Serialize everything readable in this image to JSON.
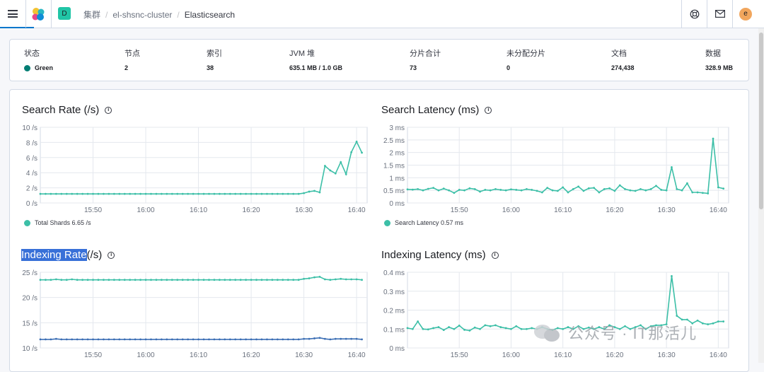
{
  "header": {
    "space_initial": "D",
    "breadcrumbs": [
      "集群",
      "el-shsnc-cluster",
      "Elasticsearch"
    ],
    "avatar_initial": "e",
    "accent_color": "#0077cc"
  },
  "summary": {
    "items": [
      {
        "label": "状态",
        "value": "Green",
        "color": "#017d73"
      },
      {
        "label": "节点",
        "value": "2"
      },
      {
        "label": "索引",
        "value": "38"
      },
      {
        "label": "JVM 堆",
        "value": "635.1 MB / 1.0 GB"
      },
      {
        "label": "分片合计",
        "value": "73"
      },
      {
        "label": "未分配分片",
        "value": "0"
      },
      {
        "label": "文档",
        "value": "274,438"
      },
      {
        "label": "数据",
        "value": "328.9 MB"
      }
    ]
  },
  "charts": {
    "search_rate": {
      "title": "Search Rate (/s)",
      "legend": "Total Shards 6.65 /s"
    },
    "search_latency": {
      "title": "Search Latency (ms)",
      "legend": "Search Latency 0.57 ms"
    },
    "indexing_rate": {
      "title_highlight": "Indexing Rate",
      "title_rest": " (/s)"
    },
    "indexing_latency": {
      "title": "Indexing Latency (ms)"
    }
  },
  "watermark": {
    "text": "公众号 · IT那活儿"
  },
  "chart_data": [
    {
      "type": "line",
      "title": "Search Rate (/s)",
      "ylim": [
        0,
        10
      ],
      "yticks": [
        "0 /s",
        "2 /s",
        "4 /s",
        "6 /s",
        "8 /s",
        "10 /s"
      ],
      "ytick_values": [
        0,
        2,
        4,
        6,
        8,
        10
      ],
      "xticks": [
        "15:50",
        "16:00",
        "16:10",
        "16:20",
        "16:30",
        "16:40"
      ],
      "xtick_minutes": [
        10,
        20,
        30,
        40,
        50,
        60
      ],
      "x_range_minutes": [
        0,
        62
      ],
      "color": "#3cbfa7",
      "series": [
        {
          "name": "Total Shards",
          "x": [
            0,
            1,
            2,
            3,
            4,
            5,
            6,
            7,
            8,
            9,
            10,
            11,
            12,
            13,
            14,
            15,
            16,
            17,
            18,
            19,
            20,
            21,
            22,
            23,
            24,
            25,
            26,
            27,
            28,
            29,
            30,
            31,
            32,
            33,
            34,
            35,
            36,
            37,
            38,
            39,
            40,
            41,
            42,
            43,
            44,
            45,
            46,
            47,
            48,
            49,
            50,
            51,
            52,
            53,
            54,
            55,
            56,
            57,
            58,
            59,
            60,
            61
          ],
          "values": [
            1.2,
            1.2,
            1.2,
            1.2,
            1.2,
            1.2,
            1.2,
            1.2,
            1.2,
            1.2,
            1.2,
            1.2,
            1.2,
            1.2,
            1.2,
            1.2,
            1.2,
            1.2,
            1.2,
            1.2,
            1.2,
            1.2,
            1.2,
            1.2,
            1.2,
            1.2,
            1.2,
            1.2,
            1.2,
            1.2,
            1.2,
            1.2,
            1.2,
            1.2,
            1.2,
            1.2,
            1.2,
            1.2,
            1.2,
            1.2,
            1.2,
            1.2,
            1.2,
            1.2,
            1.2,
            1.2,
            1.2,
            1.2,
            1.2,
            1.2,
            1.3,
            1.5,
            1.6,
            1.4,
            4.9,
            4.3,
            3.9,
            5.4,
            3.8,
            6.7,
            8.1,
            6.65
          ]
        }
      ]
    },
    {
      "type": "line",
      "title": "Search Latency (ms)",
      "ylim": [
        0,
        3
      ],
      "yticks": [
        "0 ms",
        "0.5 ms",
        "1 ms",
        "1.5 ms",
        "2 ms",
        "2.5 ms",
        "3 ms"
      ],
      "ytick_values": [
        0,
        0.5,
        1,
        1.5,
        2,
        2.5,
        3
      ],
      "xticks": [
        "15:50",
        "16:00",
        "16:10",
        "16:20",
        "16:30",
        "16:40"
      ],
      "xtick_minutes": [
        10,
        20,
        30,
        40,
        50,
        60
      ],
      "x_range_minutes": [
        0,
        62
      ],
      "color": "#3cbfa7",
      "series": [
        {
          "name": "Search Latency",
          "x": [
            0,
            1,
            2,
            3,
            4,
            5,
            6,
            7,
            8,
            9,
            10,
            11,
            12,
            13,
            14,
            15,
            16,
            17,
            18,
            19,
            20,
            21,
            22,
            23,
            24,
            25,
            26,
            27,
            28,
            29,
            30,
            31,
            32,
            33,
            34,
            35,
            36,
            37,
            38,
            39,
            40,
            41,
            42,
            43,
            44,
            45,
            46,
            47,
            48,
            49,
            50,
            51,
            52,
            53,
            54,
            55,
            56,
            57,
            58,
            59,
            60,
            61
          ],
          "values": [
            0.54,
            0.53,
            0.55,
            0.5,
            0.56,
            0.6,
            0.5,
            0.57,
            0.5,
            0.4,
            0.52,
            0.5,
            0.58,
            0.55,
            0.45,
            0.52,
            0.5,
            0.55,
            0.52,
            0.5,
            0.54,
            0.52,
            0.5,
            0.55,
            0.52,
            0.48,
            0.42,
            0.6,
            0.5,
            0.48,
            0.62,
            0.42,
            0.55,
            0.65,
            0.48,
            0.58,
            0.6,
            0.42,
            0.55,
            0.58,
            0.48,
            0.7,
            0.55,
            0.5,
            0.48,
            0.55,
            0.5,
            0.55,
            0.68,
            0.52,
            0.5,
            1.42,
            0.55,
            0.5,
            0.78,
            0.42,
            0.42,
            0.4,
            0.38,
            2.55,
            0.62,
            0.57
          ]
        }
      ]
    },
    {
      "type": "line",
      "title": "Indexing Rate (/s)",
      "ylim": [
        10,
        25
      ],
      "yticks": [
        "10 /s",
        "15 /s",
        "20 /s",
        "25 /s"
      ],
      "ytick_values": [
        10,
        15,
        20,
        25
      ],
      "xticks": [
        "15:50",
        "16:00",
        "16:10",
        "16:20",
        "16:30",
        "16:40"
      ],
      "xtick_minutes": [
        10,
        20,
        30,
        40,
        50,
        60
      ],
      "x_range_minutes": [
        0,
        62
      ],
      "colors": [
        "#3cbfa7",
        "#3c6fb5"
      ],
      "series": [
        {
          "x": [
            0,
            1,
            2,
            3,
            4,
            5,
            6,
            7,
            8,
            9,
            10,
            11,
            12,
            13,
            14,
            15,
            16,
            17,
            18,
            19,
            20,
            21,
            22,
            23,
            24,
            25,
            26,
            27,
            28,
            29,
            30,
            31,
            32,
            33,
            34,
            35,
            36,
            37,
            38,
            39,
            40,
            41,
            42,
            43,
            44,
            45,
            46,
            47,
            48,
            49,
            50,
            51,
            52,
            53,
            54,
            55,
            56,
            57,
            58,
            59,
            60,
            61
          ],
          "values": [
            23.5,
            23.5,
            23.5,
            23.6,
            23.5,
            23.5,
            23.6,
            23.5,
            23.5,
            23.5,
            23.5,
            23.5,
            23.5,
            23.5,
            23.5,
            23.5,
            23.5,
            23.5,
            23.5,
            23.5,
            23.5,
            23.5,
            23.5,
            23.5,
            23.5,
            23.5,
            23.5,
            23.5,
            23.5,
            23.5,
            23.5,
            23.5,
            23.5,
            23.5,
            23.5,
            23.5,
            23.5,
            23.5,
            23.5,
            23.5,
            23.5,
            23.5,
            23.5,
            23.5,
            23.5,
            23.5,
            23.5,
            23.5,
            23.5,
            23.5,
            23.7,
            23.8,
            24.0,
            24.1,
            23.6,
            23.5,
            23.6,
            23.7,
            23.6,
            23.6,
            23.6,
            23.5
          ]
        },
        {
          "x": [
            0,
            1,
            2,
            3,
            4,
            5,
            6,
            7,
            8,
            9,
            10,
            11,
            12,
            13,
            14,
            15,
            16,
            17,
            18,
            19,
            20,
            21,
            22,
            23,
            24,
            25,
            26,
            27,
            28,
            29,
            30,
            31,
            32,
            33,
            34,
            35,
            36,
            37,
            38,
            39,
            40,
            41,
            42,
            43,
            44,
            45,
            46,
            47,
            48,
            49,
            50,
            51,
            52,
            53,
            54,
            55,
            56,
            57,
            58,
            59,
            60,
            61
          ],
          "values": [
            11.7,
            11.7,
            11.7,
            11.8,
            11.7,
            11.7,
            11.7,
            11.7,
            11.7,
            11.7,
            11.7,
            11.7,
            11.7,
            11.7,
            11.7,
            11.7,
            11.7,
            11.7,
            11.7,
            11.7,
            11.7,
            11.7,
            11.7,
            11.7,
            11.7,
            11.7,
            11.7,
            11.7,
            11.7,
            11.7,
            11.7,
            11.7,
            11.7,
            11.7,
            11.7,
            11.7,
            11.7,
            11.7,
            11.7,
            11.7,
            11.7,
            11.7,
            11.7,
            11.7,
            11.7,
            11.7,
            11.7,
            11.7,
            11.7,
            11.7,
            11.8,
            11.8,
            11.9,
            12.0,
            11.8,
            11.7,
            11.8,
            11.8,
            11.8,
            11.8,
            11.8,
            11.7
          ]
        }
      ]
    },
    {
      "type": "line",
      "title": "Indexing Latency (ms)",
      "ylim": [
        0,
        0.4
      ],
      "yticks": [
        "0 ms",
        "0.1 ms",
        "0.2 ms",
        "0.3 ms",
        "0.4 ms"
      ],
      "ytick_values": [
        0,
        0.1,
        0.2,
        0.3,
        0.4
      ],
      "xticks": [
        "15:50",
        "16:00",
        "16:10",
        "16:20",
        "16:30",
        "16:40"
      ],
      "xtick_minutes": [
        10,
        20,
        30,
        40,
        50,
        60
      ],
      "x_range_minutes": [
        0,
        62
      ],
      "color": "#3cbfa7",
      "series": [
        {
          "x": [
            0,
            1,
            2,
            3,
            4,
            5,
            6,
            7,
            8,
            9,
            10,
            11,
            12,
            13,
            14,
            15,
            16,
            17,
            18,
            19,
            20,
            21,
            22,
            23,
            24,
            25,
            26,
            27,
            28,
            29,
            30,
            31,
            32,
            33,
            34,
            35,
            36,
            37,
            38,
            39,
            40,
            41,
            42,
            43,
            44,
            45,
            46,
            47,
            48,
            49,
            50,
            51,
            52,
            53,
            54,
            55,
            56,
            57,
            58,
            59,
            60,
            61
          ],
          "values": [
            0.105,
            0.1,
            0.14,
            0.1,
            0.098,
            0.105,
            0.11,
            0.095,
            0.11,
            0.1,
            0.118,
            0.096,
            0.092,
            0.108,
            0.1,
            0.12,
            0.115,
            0.12,
            0.11,
            0.105,
            0.1,
            0.115,
            0.1,
            0.1,
            0.105,
            0.1,
            0.11,
            0.1,
            0.095,
            0.105,
            0.1,
            0.11,
            0.1,
            0.115,
            0.1,
            0.108,
            0.1,
            0.11,
            0.1,
            0.12,
            0.11,
            0.1,
            0.115,
            0.1,
            0.11,
            0.12,
            0.1,
            0.115,
            0.12,
            0.12,
            0.125,
            0.38,
            0.17,
            0.15,
            0.15,
            0.13,
            0.145,
            0.13,
            0.125,
            0.13,
            0.14,
            0.14
          ]
        }
      ]
    }
  ]
}
